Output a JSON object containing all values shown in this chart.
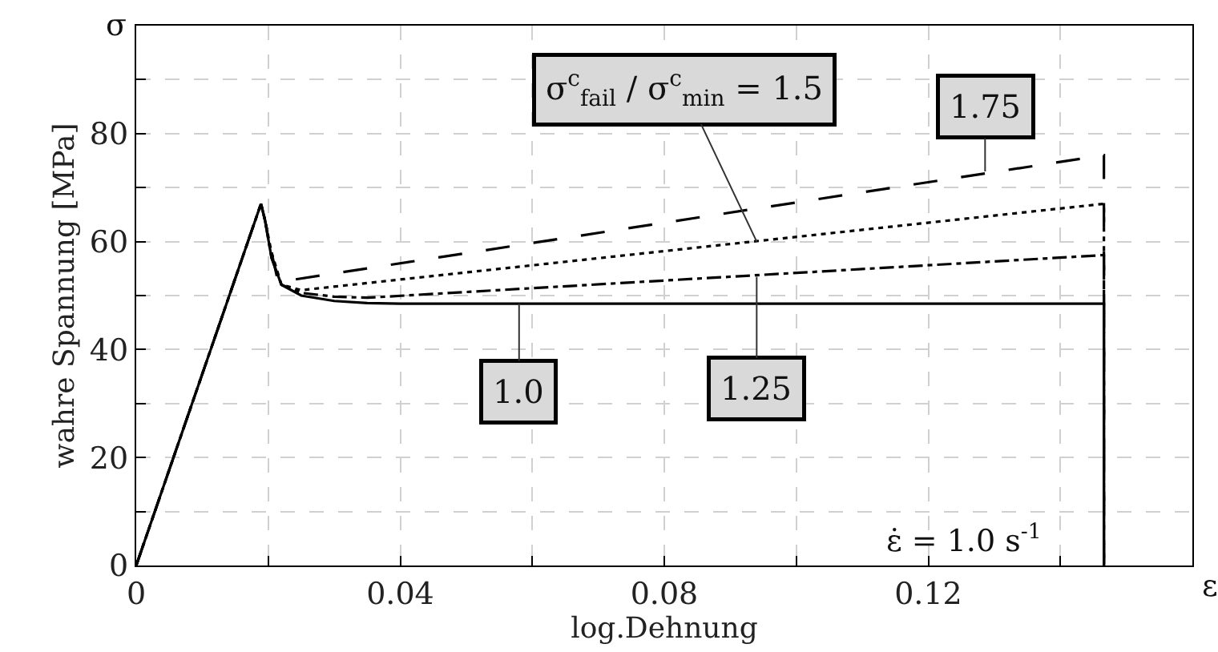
{
  "chart_data": {
    "type": "line",
    "xlabel": "log.Dehnung",
    "ylabel": "wahre Spannung [MPa]",
    "xlim": [
      0,
      0.16
    ],
    "ylim": [
      0,
      100
    ],
    "xticks": [
      0,
      {
        "value": 0.02,
        "label": null
      },
      0.04,
      {
        "value": 0.06,
        "label": null
      },
      0.08,
      {
        "value": 0.1,
        "label": null
      },
      0.12,
      {
        "value": 0.14,
        "label": null
      }
    ],
    "yticks": [
      0,
      {
        "value": 10,
        "label": null
      },
      20,
      {
        "value": 30,
        "label": null
      },
      40,
      {
        "value": 50,
        "label": null
      },
      60,
      {
        "value": 70,
        "label": null
      },
      80,
      {
        "value": 90,
        "label": null
      }
    ],
    "grid": true,
    "legend": false,
    "series": [
      {
        "color": "#000000",
        "line_style": "dashed",
        "x": [
          0,
          0.0189,
          0.0195,
          0.0205,
          0.0215,
          0.1466,
          0.1466
        ],
        "values": [
          0,
          67,
          64,
          58,
          52.5,
          76,
          0
        ]
      },
      {
        "color": "#000000",
        "line_style": "dotted",
        "x": [
          0,
          0.0189,
          0.0195,
          0.0205,
          0.022,
          0.025,
          0.1466,
          0.1466
        ],
        "values": [
          0,
          67,
          64,
          58,
          52,
          51,
          67,
          0
        ]
      },
      {
        "color": "#000000",
        "line_style": "dashdot",
        "x": [
          0,
          0.0189,
          0.0195,
          0.0205,
          0.022,
          0.025,
          0.03,
          0.035,
          0.1466,
          0.1466
        ],
        "values": [
          0,
          67,
          64,
          57,
          52,
          50.5,
          49.8,
          49.6,
          57.5,
          0
        ]
      },
      {
        "color": "#000000",
        "line_style": "solid",
        "x": [
          0,
          0.0189,
          0.0195,
          0.0205,
          0.022,
          0.025,
          0.03,
          0.035,
          0.04,
          0.1466,
          0.1466
        ],
        "values": [
          0,
          67,
          64,
          57,
          52,
          50,
          49,
          48.6,
          48.5,
          48.5,
          0
        ]
      }
    ],
    "annotations": [
      {
        "text": "1.0",
        "x": 0.058,
        "y": 48.5
      },
      {
        "text": "1.25",
        "x": 0.094,
        "y": 53.5
      },
      {
        "text": "σ$^{c}$$_{fail}$ / σ$^{c}$$_{min}$ = 1.5",
        "x": 0.094,
        "y": 60
      },
      {
        "text": "1.75",
        "x": 0.1286,
        "y": 73
      },
      "σ",
      "ε",
      "ε̇ = 1.0 s$^{-1}$"
    ]
  }
}
